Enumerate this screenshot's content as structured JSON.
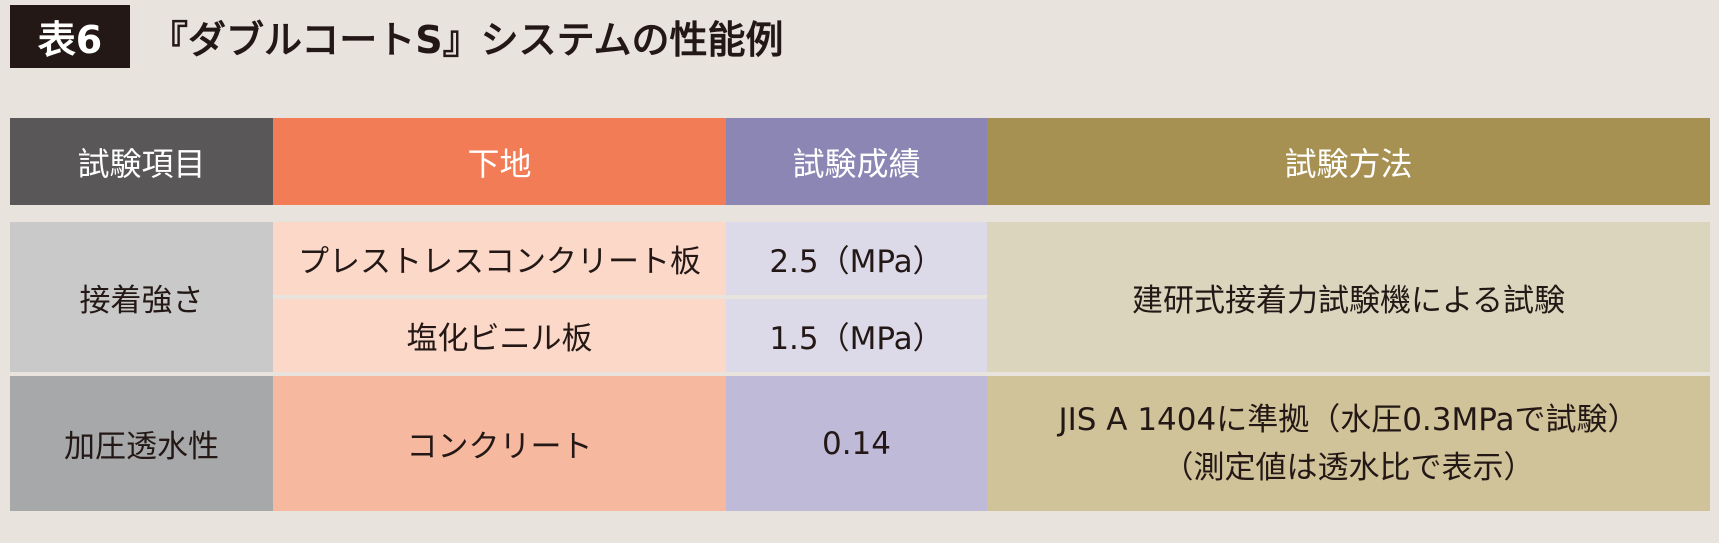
{
  "title": {
    "badge": "表6",
    "text": "『ダブルコートS』システムの性能例"
  },
  "table": {
    "headers": {
      "item": "試験項目",
      "base": "下地",
      "result": "試験成績",
      "method": "試験方法"
    },
    "adhesion": {
      "item": "接着強さ",
      "rows": [
        {
          "base": "プレストレスコンクリート板",
          "result": "2.5（MPa）"
        },
        {
          "base": "塩化ビニル板",
          "result": "1.5（MPa）"
        }
      ],
      "method": "建研式接着力試験機による試験"
    },
    "permeability": {
      "item": "加圧透水性",
      "base": "コンクリート",
      "result": "0.14",
      "method_line1": "JIS A 1404に準拠（水圧0.3MPaで試験）",
      "method_line2": "（測定値は透水比で表示）"
    }
  },
  "colors": {
    "background": "#e8e3dc",
    "header_item": "#595757",
    "header_base": "#f27c56",
    "header_result": "#8c86b5",
    "header_method": "#a79152"
  }
}
